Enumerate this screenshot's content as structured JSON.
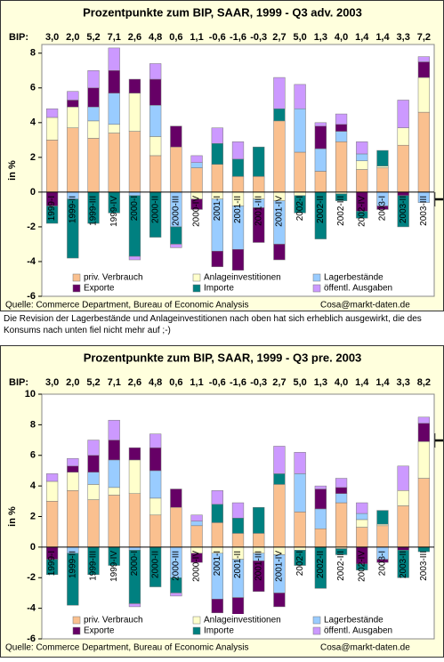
{
  "note": "Die Revision der Lagerbestände und Anlageinvestitionen nach oben hat sich erheblich ausgewirkt, die des Konsums nach unten fiel nicht mehr auf ;-)",
  "chart_data": [
    {
      "type": "bar",
      "stacked": true,
      "title": "Prozentpunkte zum BIP, SAAR, 1999 - Q3 adv. 2003",
      "bip": {
        "label": "BIP:",
        "values": [
          3.0,
          2.0,
          5.2,
          7.1,
          2.6,
          4.8,
          0.6,
          1.1,
          -0.6,
          -1.6,
          -0.3,
          2.7,
          5.0,
          1.3,
          4.0,
          1.4,
          1.4,
          3.3,
          7.2
        ],
        "value_labels": [
          "3,0",
          "2,0",
          "5,2",
          "7,1",
          "2,6",
          "4,8",
          "0,6",
          "1,1",
          "-0,6",
          "-1,6",
          "-0,3",
          "2,7",
          "5,0",
          "1,3",
          "4,0",
          "1,4",
          "1,4",
          "3,3",
          "7,2"
        ]
      },
      "ylabel": "in %",
      "categories": [
        "1999-I",
        "1999-II",
        "1999-III",
        "1999-IV",
        "2000-I",
        "2000-II",
        "2000-III",
        "2000-IV",
        "2001-I",
        "2001-II",
        "2001-III",
        "2001-IV",
        "2002-I",
        "2002-II",
        "2002-III",
        "2002-IV",
        "2003-I",
        "2003-II",
        "2003-III"
      ],
      "series": [
        {
          "name": "priv. Verbrauch",
          "color": "#fac08f",
          "values": [
            3.0,
            3.7,
            3.1,
            3.4,
            3.5,
            2.1,
            2.6,
            1.4,
            1.6,
            0.9,
            0.9,
            4.1,
            2.3,
            1.2,
            2.9,
            1.3,
            1.4,
            2.7,
            4.6
          ]
        },
        {
          "name": "Anlageinvestitionen",
          "color": "#ffffcc",
          "values": [
            1.3,
            1.2,
            1.0,
            0.5,
            2.2,
            1.1,
            0,
            -0.4,
            -0.4,
            -0.8,
            -0.4,
            -0.5,
            -0.2,
            0,
            -0.1,
            0.5,
            0.1,
            1.0,
            2.0
          ]
        },
        {
          "name": "Lagerbestände",
          "color": "#99ccff",
          "values": [
            0,
            -0.4,
            0.8,
            1.8,
            -0.2,
            1.8,
            -2.0,
            0.3,
            -3.0,
            -2.5,
            -0.5,
            -2.5,
            2.5,
            1.3,
            0.6,
            0.4,
            -0.8,
            0,
            -0.6
          ]
        },
        {
          "name": "Exporte",
          "color": "#660066",
          "values": [
            -0.8,
            0.4,
            1.1,
            1.3,
            0.8,
            1.5,
            1.2,
            -0.6,
            -0.9,
            -1.2,
            -2.0,
            -0.9,
            0,
            1.3,
            0.4,
            -1.1,
            -0.2,
            -0.2,
            0.9
          ]
        },
        {
          "name": "Importe",
          "color": "#008080",
          "values": [
            -1.0,
            -3.4,
            -1.8,
            -1.2,
            -3.5,
            -2.6,
            -1.0,
            0,
            1.2,
            1.0,
            1.7,
            0.7,
            -1.0,
            -2.7,
            -0.4,
            -0.4,
            0.9,
            -1.8,
            0
          ]
        },
        {
          "name": "öffentl. Ausgaben",
          "color": "#cc99ff",
          "values": [
            0.5,
            0.5,
            1.0,
            1.3,
            -0.2,
            0.9,
            -0.2,
            0.4,
            0.9,
            1.0,
            0,
            1.8,
            1.4,
            0.2,
            0.6,
            0.7,
            0,
            1.6,
            0.3
          ]
        }
      ],
      "ylim": [
        -6,
        8.5
      ],
      "yticks": [
        -6,
        -4,
        -2,
        0,
        2,
        4,
        6,
        8
      ],
      "legend": "bottom",
      "source": "Quelle: Commerce Department, Bureau of Economic Analysis",
      "contact": "Cosa@markt-daten.de"
    },
    {
      "type": "bar",
      "stacked": true,
      "title": "Prozentpunkte zum BIP, SAAR, 1999 - Q3 pre. 2003",
      "bip": {
        "label": "BIP:",
        "values": [
          3.0,
          2.0,
          5.2,
          7.1,
          2.6,
          4.8,
          0.6,
          1.1,
          -0.6,
          -1.6,
          -0.3,
          2.7,
          5.0,
          1.3,
          4.0,
          1.4,
          1.4,
          3.3,
          8.2
        ],
        "value_labels": [
          "3,0",
          "2,0",
          "5,2",
          "7,1",
          "2,6",
          "4,8",
          "0,6",
          "1,1",
          "-0,6",
          "-1,6",
          "-0,3",
          "2,7",
          "5,0",
          "1,3",
          "4,0",
          "1,4",
          "1,4",
          "3,3",
          "8,2"
        ]
      },
      "ylabel": "in %",
      "categories": [
        "1999-I",
        "1999-II",
        "1999-III",
        "1999-IV",
        "2000-I",
        "2000-II",
        "2000-III",
        "2000-IV",
        "2001-I",
        "2001-II",
        "2001-III",
        "2001-IV",
        "2002-I",
        "2002-II",
        "2002-III",
        "2002-IV",
        "2003-I",
        "2003-II",
        "2003-III"
      ],
      "series": [
        {
          "name": "priv. Verbrauch",
          "color": "#fac08f",
          "values": [
            3.0,
            3.7,
            3.1,
            3.4,
            3.5,
            2.1,
            2.6,
            1.4,
            1.6,
            0.9,
            0.9,
            4.1,
            2.3,
            1.2,
            2.9,
            1.3,
            1.4,
            2.7,
            4.5
          ]
        },
        {
          "name": "Anlageinvestitionen",
          "color": "#ffffcc",
          "values": [
            1.3,
            1.2,
            1.0,
            0.5,
            2.2,
            1.1,
            0,
            -0.4,
            -0.4,
            -0.8,
            -0.4,
            -0.5,
            -0.2,
            0,
            -0.1,
            0.5,
            0.1,
            1.0,
            2.4
          ]
        },
        {
          "name": "Lagerbestände",
          "color": "#99ccff",
          "values": [
            0,
            -0.4,
            0.8,
            1.8,
            -0.2,
            1.8,
            -2.0,
            0.3,
            -3.0,
            -2.5,
            -0.5,
            -2.5,
            2.5,
            1.3,
            0.6,
            0.4,
            -0.8,
            0,
            0
          ]
        },
        {
          "name": "Exporte",
          "color": "#660066",
          "values": [
            -0.8,
            0.4,
            1.1,
            1.3,
            0.8,
            1.5,
            1.2,
            -0.6,
            -0.9,
            -1.2,
            -2.0,
            -0.9,
            0,
            1.3,
            0.4,
            -1.1,
            -0.2,
            -0.2,
            1.2
          ]
        },
        {
          "name": "Importe",
          "color": "#008080",
          "values": [
            -1.0,
            -3.4,
            -1.8,
            -1.2,
            -3.5,
            -2.6,
            -1.0,
            0,
            1.2,
            1.0,
            1.7,
            0.7,
            -1.0,
            -2.7,
            -0.4,
            -0.4,
            0.9,
            -1.8,
            -0.3
          ]
        },
        {
          "name": "öffentl. Ausgaben",
          "color": "#cc99ff",
          "values": [
            0.5,
            0.5,
            1.0,
            1.3,
            -0.2,
            0.9,
            -0.2,
            0.4,
            0.9,
            1.0,
            0,
            1.8,
            1.4,
            0.2,
            0.6,
            0.7,
            0,
            1.6,
            0.4
          ]
        }
      ],
      "ylim": [
        -6,
        10
      ],
      "yticks": [
        -6,
        -4,
        -2,
        0,
        2,
        4,
        6,
        8,
        10
      ],
      "legend": "bottom",
      "source": "Quelle: Commerce Department, Bureau of Economic Analysis",
      "contact": "Cosa@markt-daten.de"
    }
  ]
}
